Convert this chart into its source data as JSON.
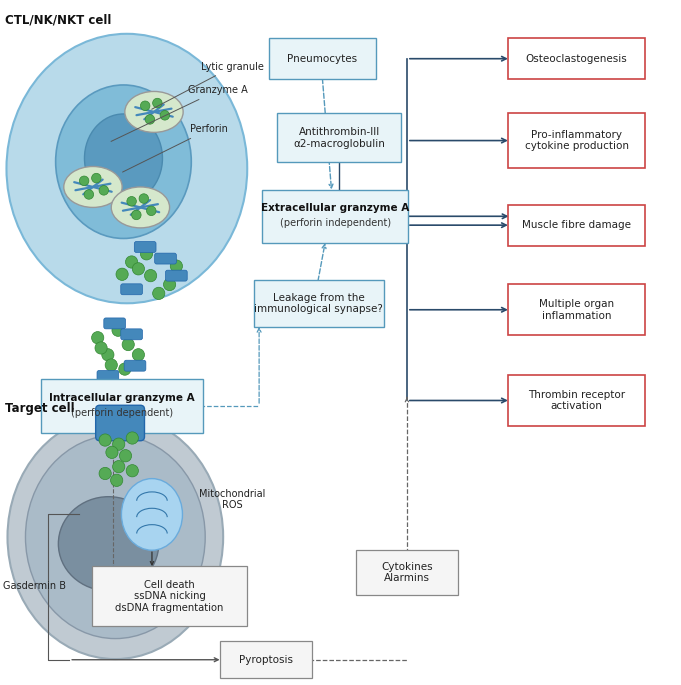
{
  "cell_ctl_label": "CTL/NK/NKT cell",
  "cell_target_label": "Target cell",
  "labels": {
    "lytic_granule": "Lytic granule",
    "granzyme_a": "Granzyme A",
    "perforin": "Perforin",
    "intracellular_bold": "Intracellular granzyme A",
    "intracellular_sub": "(perforin dependent)",
    "extracellular_bold": "Extracellular granzyme A",
    "extracellular_sub": "(perforin independent)",
    "pneumocytes": "Pneumocytes",
    "antithrombin": "Antithrombin-III\nα2-macroglobulin",
    "leakage": "Leakage from the\nimmunological synapse?",
    "mitochondrial": "Mitochondrial\nROS",
    "cell_death": "Cell death\nssDNA nicking\ndsDNA fragmentation",
    "gasdermin": "Gasdermin B",
    "pyroptosis": "Pyroptosis",
    "cytokines": "Cytokines\nAlarmins",
    "osteoclastogenesis": "Osteoclastogenesis",
    "pro_inflammatory": "Pro-inflammatory\ncytokine production",
    "muscle_fibre": "Muscle fibre damage",
    "multiple_organ": "Multiple organ\ninflammation",
    "thrombin": "Thrombin receptor\nactivation"
  },
  "colors": {
    "ctl_cell_outer": "#b8daea",
    "ctl_cell_inner": "#7ab8d8",
    "ctl_nucleus": "#5a9abf",
    "ctl_nucleus_inner": "#4a8aaf",
    "target_cell_outer": "#c0cad2",
    "target_cell_mid": "#a8b8c4",
    "target_cell_inner": "#8898a8",
    "target_nucleus": "#6a7a8a",
    "mitochondria_fill": "#a8d4f0",
    "mitochondria_edge": "#6aabdc",
    "granule_fill": "#d8e8d0",
    "granule_border": "#aaaaaa",
    "granzyme_color": "#55aa55",
    "perforin_color": "#4488bb",
    "box_blue_fill": "#e8f4f8",
    "box_blue_border": "#5599bb",
    "box_red_border": "#cc4444",
    "box_red_fill": "#ffffff",
    "arrow_dark": "#2a4a6a",
    "arrow_dashed": "#5599bb",
    "text_dark": "#222222",
    "background": "#ffffff"
  }
}
